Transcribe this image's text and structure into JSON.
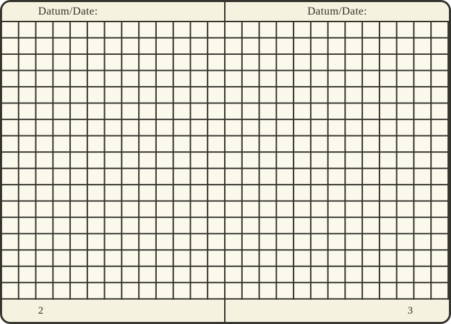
{
  "palette": {
    "backdrop": "#ffffff",
    "band_paper": "#f6f2e0",
    "cell_paper": "#fbf9ec",
    "line": "#34332c",
    "ink": "#33312a"
  },
  "grid": {
    "columns_per_page": 13,
    "rows": 17
  },
  "left_page": {
    "date_label": "Datum/Date:",
    "page_number": "2"
  },
  "right_page": {
    "date_label": "Datum/Date:",
    "page_number": "3"
  }
}
